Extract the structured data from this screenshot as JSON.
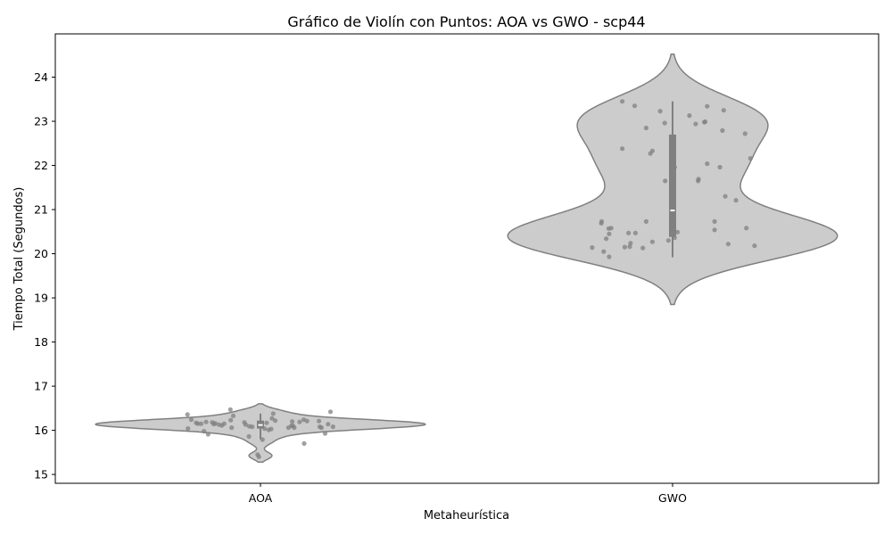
{
  "chart_data": {
    "type": "violin",
    "title": "Gráfico de Violín con Puntos: AOA vs GWO - scp44",
    "xlabel": "Metaheurística",
    "ylabel": "Tiempo Total (Segundos)",
    "categories": [
      "AOA",
      "GWO"
    ],
    "yticks": [
      15,
      16,
      17,
      18,
      19,
      20,
      21,
      22,
      23,
      24
    ],
    "ylim": [
      14.8,
      24.98
    ],
    "grid": false,
    "violin_color": "#cccccc",
    "violin_edge_color": "#808080",
    "point_color": "#808080",
    "inner_box_color": "#808080",
    "series": [
      {
        "category": "AOA",
        "median": 16.12,
        "q1": 16.04,
        "q3": 16.22,
        "whisker_low": 15.8,
        "whisker_high": 16.38,
        "violin_min": 15.28,
        "violin_max": 16.6,
        "points": [
          [
            -0.177,
            16.36
          ],
          [
            -0.168,
            16.24
          ],
          [
            -0.156,
            16.17
          ],
          [
            -0.152,
            16.15
          ],
          [
            -0.176,
            16.04
          ],
          [
            -0.144,
            16.15
          ],
          [
            -0.137,
            15.98
          ],
          [
            -0.132,
            16.19
          ],
          [
            -0.127,
            15.91
          ],
          [
            -0.117,
            16.18
          ],
          [
            -0.113,
            16.14
          ],
          [
            -0.11,
            16.16
          ],
          [
            -0.101,
            16.13
          ],
          [
            -0.094,
            16.11
          ],
          [
            -0.088,
            16.15
          ],
          [
            -0.073,
            16.47
          ],
          [
            -0.072,
            16.23
          ],
          [
            -0.07,
            16.06
          ],
          [
            -0.066,
            16.33
          ],
          [
            -0.039,
            16.18
          ],
          [
            -0.036,
            16.13
          ],
          [
            -0.028,
            15.86
          ],
          [
            -0.027,
            16.09
          ],
          [
            -0.02,
            16.08
          ],
          [
            -0.007,
            15.45
          ],
          [
            -0.004,
            15.4
          ],
          [
            0.005,
            15.79
          ],
          [
            0.01,
            16.04
          ],
          [
            0.015,
            16.17
          ],
          [
            0.02,
            16.01
          ],
          [
            0.026,
            16.03
          ],
          [
            0.028,
            16.27
          ],
          [
            0.031,
            16.38
          ],
          [
            0.036,
            16.22
          ],
          [
            0.068,
            16.06
          ],
          [
            0.075,
            16.1
          ],
          [
            0.077,
            16.2
          ],
          [
            0.079,
            16.1
          ],
          [
            0.082,
            16.06
          ],
          [
            0.095,
            16.19
          ],
          [
            0.105,
            16.24
          ],
          [
            0.113,
            16.21
          ],
          [
            0.106,
            15.7
          ],
          [
            0.142,
            16.21
          ],
          [
            0.144,
            16.08
          ],
          [
            0.148,
            16.06
          ],
          [
            0.157,
            15.93
          ],
          [
            0.164,
            16.14
          ],
          [
            0.17,
            16.42
          ],
          [
            0.176,
            16.08
          ]
        ]
      },
      {
        "category": "GWO",
        "median": 20.98,
        "q1": 20.38,
        "q3": 22.7,
        "whisker_low": 19.92,
        "whisker_high": 23.45,
        "violin_min": 18.85,
        "violin_max": 24.52,
        "points": [
          [
            -0.195,
            20.14
          ],
          [
            -0.172,
            20.73
          ],
          [
            -0.173,
            20.69
          ],
          [
            -0.167,
            20.05
          ],
          [
            -0.161,
            20.34
          ],
          [
            -0.155,
            20.57
          ],
          [
            -0.154,
            20.45
          ],
          [
            -0.149,
            20.58
          ],
          [
            -0.154,
            19.93
          ],
          [
            -0.122,
            23.45
          ],
          [
            -0.122,
            22.38
          ],
          [
            -0.116,
            20.15
          ],
          [
            -0.107,
            20.47
          ],
          [
            -0.104,
            20.16
          ],
          [
            -0.102,
            20.24
          ],
          [
            -0.092,
            23.35
          ],
          [
            -0.09,
            20.47
          ],
          [
            -0.072,
            20.13
          ],
          [
            -0.064,
            22.85
          ],
          [
            -0.064,
            20.73
          ],
          [
            -0.054,
            22.27
          ],
          [
            -0.049,
            22.33
          ],
          [
            -0.049,
            20.27
          ],
          [
            -0.03,
            23.23
          ],
          [
            -0.019,
            22.96
          ],
          [
            -0.018,
            21.65
          ],
          [
            -0.01,
            20.3
          ],
          [
            0.005,
            21.96
          ],
          [
            0.005,
            20.36
          ],
          [
            0.012,
            20.49
          ],
          [
            0.041,
            23.13
          ],
          [
            0.056,
            22.94
          ],
          [
            0.062,
            21.65
          ],
          [
            0.063,
            21.69
          ],
          [
            0.077,
            22.98
          ],
          [
            0.079,
            22.99
          ],
          [
            0.084,
            23.34
          ],
          [
            0.084,
            22.04
          ],
          [
            0.102,
            20.73
          ],
          [
            0.102,
            20.54
          ],
          [
            0.115,
            21.96
          ],
          [
            0.121,
            22.79
          ],
          [
            0.124,
            23.25
          ],
          [
            0.128,
            21.3
          ],
          [
            0.135,
            20.22
          ],
          [
            0.154,
            21.21
          ],
          [
            0.176,
            22.72
          ],
          [
            0.179,
            20.58
          ],
          [
            0.189,
            22.16
          ],
          [
            0.199,
            20.18
          ]
        ]
      }
    ]
  }
}
